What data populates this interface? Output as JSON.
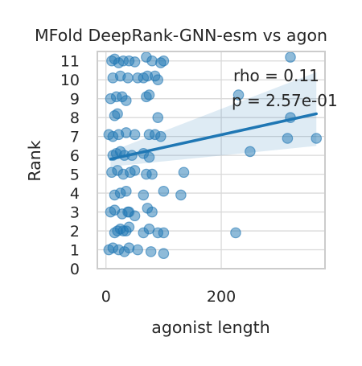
{
  "chart_data": {
    "type": "scatter",
    "title": "MFold DeepRank-GNN-esm vs agon",
    "xlabel": "agonist length",
    "ylabel": "Rank",
    "xlim": [
      -15,
      380
    ],
    "ylim": [
      0,
      11.5
    ],
    "x_ticks": [
      0,
      200
    ],
    "x_tick_labels": [
      "0",
      "200"
    ],
    "y_ticks": [
      0,
      1,
      2,
      3,
      4,
      5,
      6,
      7,
      8,
      9,
      10,
      11
    ],
    "y_tick_labels": [
      "0",
      "1",
      "2",
      "3",
      "4",
      "5",
      "6",
      "7",
      "8",
      "9",
      "10",
      "11"
    ],
    "grid": true,
    "colors": {
      "points": "#1f77b4",
      "regression_line": "#1f77b4",
      "confidence_band": "#1f77b4",
      "grid": "#d9d9d9",
      "spine": "#cccccc",
      "text": "#262626"
    },
    "annotations": [
      "rho = 0.11",
      "p = 2.57e-01"
    ],
    "regression": {
      "x": [
        8,
        365
      ],
      "y": [
        5.8,
        8.2
      ],
      "ci_upper": [
        6.2,
        10.4
      ],
      "ci_lower": [
        5.4,
        6.5
      ]
    },
    "series": [
      {
        "x": [
          10,
          15,
          22,
          30,
          40,
          50,
          70,
          80,
          95,
          100,
          12,
          25,
          38,
          55,
          65,
          72,
          85,
          90,
          8,
          18,
          28,
          35,
          70,
          75,
          15,
          20,
          90,
          5,
          12,
          22,
          35,
          50,
          75,
          85,
          95,
          12,
          18,
          25,
          32,
          45,
          65,
          75,
          10,
          20,
          30,
          42,
          50,
          70,
          80,
          135,
          15,
          25,
          35,
          65,
          100,
          130,
          8,
          15,
          28,
          38,
          72,
          80,
          50,
          40,
          20,
          30,
          15,
          25,
          35,
          40,
          65,
          75,
          90,
          100,
          225,
          5,
          12,
          22,
          32,
          40,
          55,
          78,
          100,
          320,
          320,
          315,
          250,
          230,
          365
        ],
        "y": [
          11,
          11.1,
          10.9,
          11,
          11,
          10.95,
          11.2,
          11,
          10.9,
          11,
          10.1,
          10.2,
          10.1,
          10.1,
          10.1,
          10.2,
          10.2,
          10,
          9,
          9.1,
          9.1,
          8.9,
          9.1,
          9.2,
          8.1,
          8.2,
          8,
          7.1,
          7,
          7.1,
          7.2,
          7.1,
          7.1,
          7.1,
          7,
          6,
          6.1,
          6.2,
          6,
          6,
          6.1,
          5.9,
          5.1,
          5.2,
          5,
          5.1,
          5.2,
          5,
          5,
          5.1,
          3.9,
          4,
          4.1,
          3.9,
          4.1,
          3.9,
          3,
          3.1,
          2.9,
          3,
          3.2,
          3,
          2.8,
          3,
          2,
          2,
          1.9,
          2.1,
          2,
          2.2,
          1.9,
          2.1,
          1.9,
          1.9,
          1.9,
          1,
          1.1,
          1,
          0.9,
          1.1,
          1,
          0.9,
          0.8,
          11.2,
          8,
          6.9,
          6.2,
          9.2,
          6.9
        ]
      }
    ]
  }
}
